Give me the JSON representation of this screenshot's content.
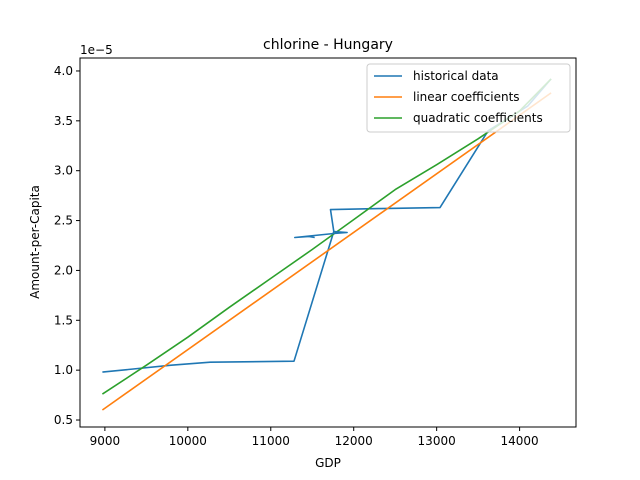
{
  "chart_data": {
    "type": "line",
    "title": "chlorine - Hungary",
    "xlabel": "GDP",
    "ylabel": "Amount-per-Capita",
    "y_offset_label": "1e−5",
    "xlim": [
      8700,
      14680
    ],
    "ylim": [
      0.43,
      4.13
    ],
    "xticks": [
      9000,
      10000,
      11000,
      12000,
      13000,
      14000
    ],
    "yticks": [
      0.5,
      1.0,
      1.5,
      2.0,
      2.5,
      3.0,
      3.5,
      4.0
    ],
    "xtick_labels": [
      "9000",
      "10000",
      "11000",
      "12000",
      "13000",
      "14000"
    ],
    "ytick_labels": [
      "0.5",
      "1.0",
      "1.5",
      "2.0",
      "2.5",
      "3.0",
      "3.5",
      "4.0"
    ],
    "legend_position": "top-right",
    "series": [
      {
        "name": "historical data",
        "color": "#1f77b4",
        "x": [
          8970,
          9800,
          10270,
          11280,
          11760,
          11720,
          12300,
          13040,
          13620,
          14100,
          14380
        ],
        "y": [
          0.98,
          1.05,
          1.08,
          1.09,
          2.39,
          2.61,
          2.62,
          2.63,
          3.4,
          3.65,
          3.92
        ]
      },
      {
        "name": "linear coefficients",
        "color": "#ff7f0e",
        "x": [
          8970,
          14380
        ],
        "y": [
          0.6,
          3.78
        ]
      },
      {
        "name": "quadratic coefficients",
        "color": "#2ca02c",
        "x": [
          8970,
          9500,
          10000,
          10500,
          11000,
          11500,
          12000,
          12500,
          13000,
          13500,
          14000,
          14380
        ],
        "y": [
          0.76,
          1.05,
          1.33,
          1.63,
          1.92,
          2.21,
          2.51,
          2.81,
          3.06,
          3.32,
          3.6,
          3.92
        ]
      }
    ],
    "extra_segments": [
      {
        "series": "historical data",
        "color": "#1f77b4",
        "x": [
          11760,
          11920,
          11760,
          11290,
          11460,
          11530
        ],
        "y": [
          2.39,
          2.38,
          2.37,
          2.33,
          2.34,
          2.33
        ]
      }
    ]
  }
}
